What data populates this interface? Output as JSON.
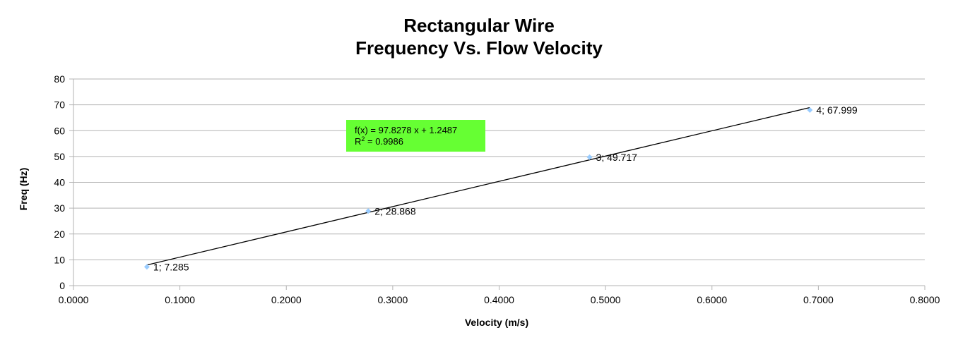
{
  "chart_data": {
    "type": "scatter",
    "title_lines": [
      "Rectangular Wire",
      "Frequency  Vs. Flow Velocity"
    ],
    "xlabel": "Velocity (m/s)",
    "ylabel": "Freq (Hz)",
    "xlim": [
      0,
      0.8
    ],
    "ylim": [
      0,
      80
    ],
    "x_ticks": [
      0,
      0.1,
      0.2,
      0.3,
      0.4,
      0.5,
      0.6,
      0.7,
      0.8
    ],
    "x_tick_labels": [
      "0.0000",
      "0.1000",
      "0.2000",
      "0.3000",
      "0.4000",
      "0.5000",
      "0.6000",
      "0.7000",
      "0.8000"
    ],
    "y_ticks": [
      0,
      10,
      20,
      30,
      40,
      50,
      60,
      70,
      80
    ],
    "y_tick_labels": [
      "0",
      "10",
      "20",
      "30",
      "40",
      "50",
      "60",
      "70",
      "80"
    ],
    "grid": "horizontal",
    "marker_color": "#99ccff",
    "trendline_color": "#000000",
    "series": [
      {
        "x": [
          0.069,
          0.277,
          0.485,
          0.692
        ],
        "y": [
          7.285,
          28.868,
          49.717,
          67.999
        ],
        "labels": [
          "1; 7.285",
          "2; 28.868",
          "3; 49.717",
          "4; 67.999"
        ]
      }
    ],
    "trendline": {
      "type": "linear",
      "slope": 97.8278,
      "intercept": 1.2487,
      "x_range": [
        0.069,
        0.692
      ],
      "equation_label": "f(x) = 97.8278 x + 1.2487",
      "r2_prefix": "R",
      "r2_sup": "2",
      "r2_value": " = 0.9986",
      "box_color": "#66ff33"
    }
  }
}
